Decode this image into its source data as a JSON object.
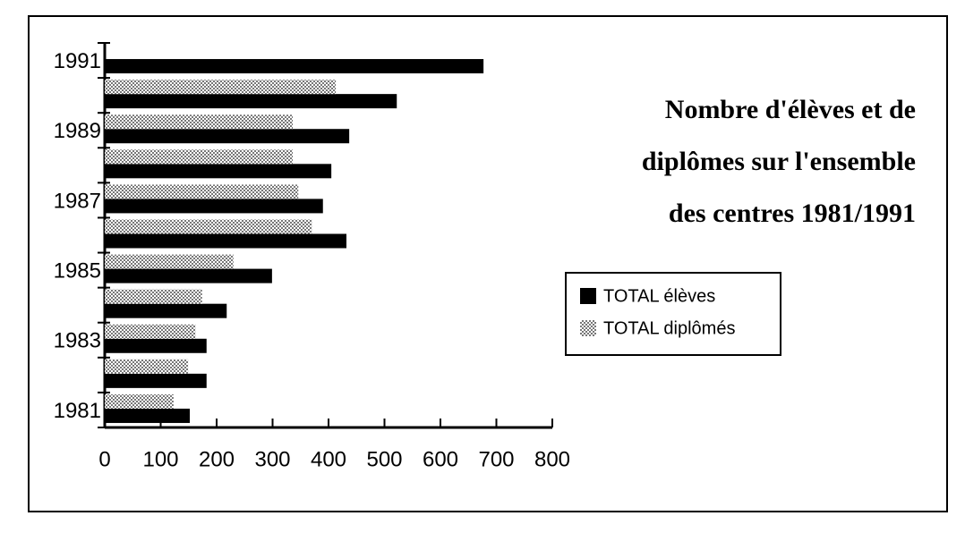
{
  "chart_data": {
    "type": "bar",
    "orientation": "horizontal",
    "title": [
      "Nombre d'élèves et de",
      "diplômes sur l'ensemble",
      "des centres 1981/1991"
    ],
    "categories": [
      "1981",
      null,
      "1983",
      null,
      "1985",
      null,
      "1987",
      null,
      "1989",
      null,
      "1991"
    ],
    "series": [
      {
        "name": "TOTAL élèves",
        "color": "#000000",
        "values": [
          152,
          182,
          182,
          218,
          299,
          432,
          390,
          405,
          437,
          522,
          677
        ]
      },
      {
        "name": "TOTAL diplômés",
        "color": "#777777",
        "pattern": "hatch",
        "values": [
          123,
          149,
          162,
          174,
          230,
          370,
          346,
          336,
          336,
          413,
          null
        ]
      }
    ],
    "xlim": [
      0,
      800
    ],
    "xticks": [
      0,
      100,
      200,
      300,
      400,
      500,
      600,
      700,
      800
    ],
    "grid": false,
    "legend": "right"
  }
}
